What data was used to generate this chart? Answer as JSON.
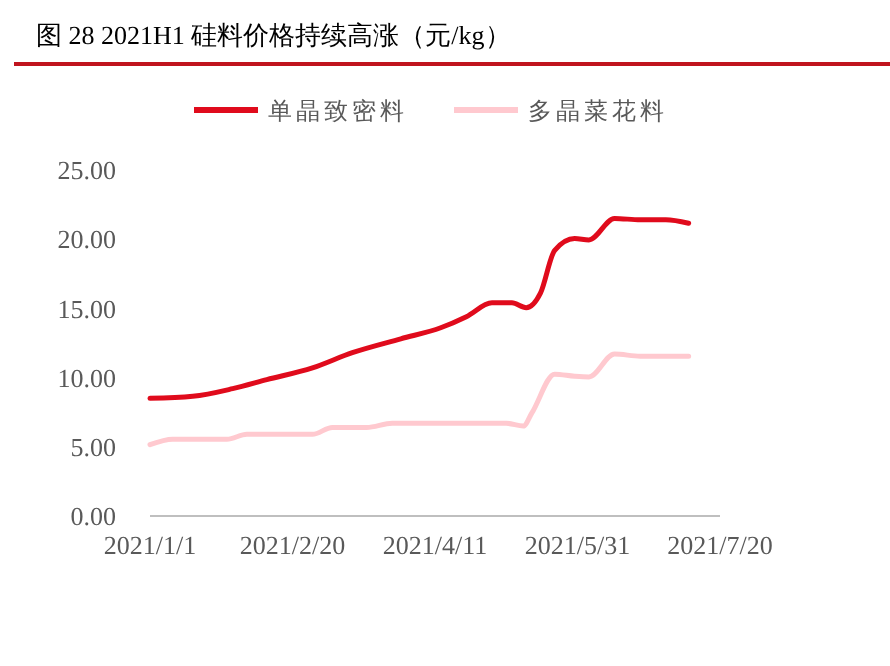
{
  "chart_data": {
    "type": "line",
    "title": "图  28 2021H1 硅料价格持续高涨（元/kg）",
    "x": [
      "2021-01-01",
      "2021-01-16",
      "2021-01-30",
      "2021-02-11",
      "2021-02-27",
      "2021-03-13",
      "2021-03-30",
      "2021-04-13",
      "2021-04-22",
      "2021-05-01",
      "2021-05-08",
      "2021-05-13",
      "2021-05-18",
      "2021-05-23",
      "2021-05-30",
      "2021-06-04",
      "2021-06-13",
      "2021-06-22",
      "2021-07-01",
      "2021-07-09"
    ],
    "series": [
      {
        "name": "单晶致密料",
        "color": "#e00b1c",
        "values": [
          8.5,
          8.65,
          9.2,
          9.85,
          10.7,
          11.8,
          12.8,
          13.6,
          14.4,
          15.4,
          15.4,
          15.05,
          16.1,
          19.2,
          20.05,
          19.95,
          21.5,
          21.4,
          21.4,
          21.15
        ]
      },
      {
        "name": "多晶菜花料",
        "color": "#ffc9cf",
        "x": [
          "2021-01-01",
          "2021-01-09",
          "2021-01-28",
          "2021-02-04",
          "2021-02-27",
          "2021-03-06",
          "2021-03-18",
          "2021-03-27",
          "2021-05-06",
          "2021-05-12",
          "2021-05-15",
          "2021-05-23",
          "2021-05-30",
          "2021-06-04",
          "2021-06-13",
          "2021-06-22",
          "2021-07-09"
        ],
        "values": [
          5.15,
          5.55,
          5.55,
          5.9,
          5.9,
          6.4,
          6.4,
          6.7,
          6.7,
          6.5,
          7.45,
          10.25,
          10.1,
          10.05,
          11.7,
          11.55,
          11.55
        ]
      }
    ],
    "xlim": [
      "2021-01-01",
      "2021-07-20"
    ],
    "xticks": [
      {
        "value": "2021-01-01",
        "label": "2021/1/1"
      },
      {
        "value": "2021-02-20",
        "label": "2021/2/20"
      },
      {
        "value": "2021-04-11",
        "label": "2021/4/11"
      },
      {
        "value": "2021-05-31",
        "label": "2021/5/31"
      },
      {
        "value": "2021-07-20",
        "label": "2021/7/20"
      }
    ],
    "ylim": [
      0,
      25
    ],
    "yticks": [
      {
        "value": 0,
        "label": "0.00"
      },
      {
        "value": 5,
        "label": "5.00"
      },
      {
        "value": 10,
        "label": "10.00"
      },
      {
        "value": 15,
        "label": "15.00"
      },
      {
        "value": 20,
        "label": "20.00"
      },
      {
        "value": 25,
        "label": "25.00"
      }
    ],
    "legend": "top",
    "grid": false,
    "marker": "none",
    "line_style": "solid"
  }
}
